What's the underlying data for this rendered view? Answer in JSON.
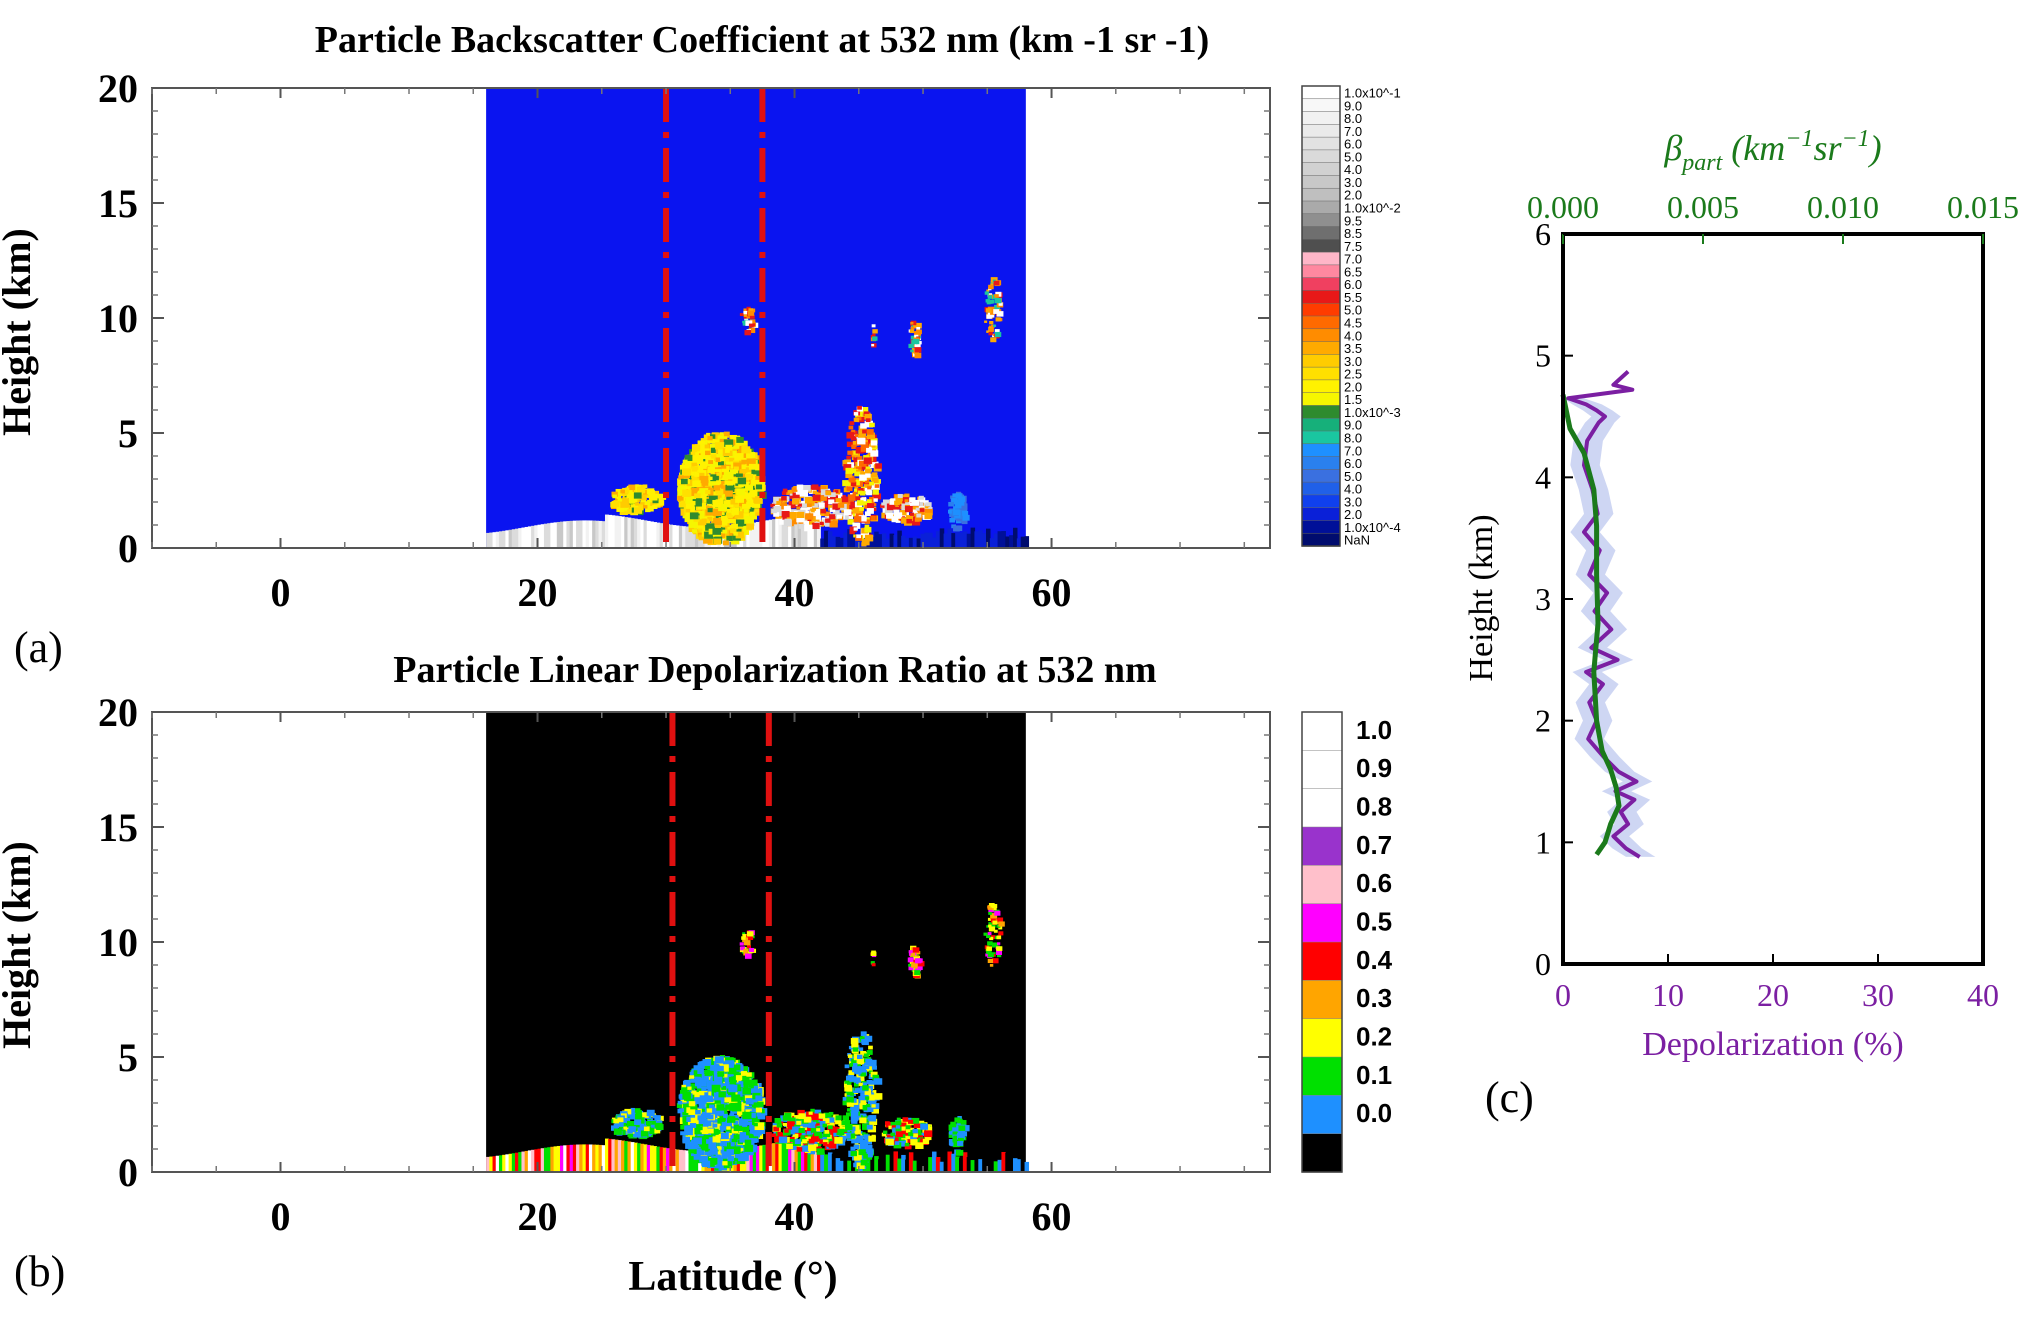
{
  "figure": {
    "panel_a": {
      "title": "Particle Backscatter Coefficient at 532 nm (km -1 sr -1)",
      "label": "(a)"
    },
    "panel_b": {
      "title": "Particle Linear Depolarization Ratio at 532 nm",
      "label": "(b)"
    },
    "panel_c": {
      "label": "(c)"
    },
    "shared_ylabel": "Height (km)",
    "shared_xlabel": "Latitude (°)"
  },
  "colors": {
    "clear_air_a": "#0a14f0",
    "clear_air_b": "#000000",
    "marker_lines": "#e01010",
    "depol_line": "#7b1fa2",
    "beta_line": "#1b7a1b",
    "band": "#b9c4ee"
  },
  "chart_data": [
    {
      "type": "heatmap",
      "title": "Particle Backscatter Coefficient at 532 nm (km -1 sr -1)",
      "ylabel": "Height (km)",
      "xlabel": "",
      "xlim": [
        -10,
        77
      ],
      "ylim": [
        0,
        20
      ],
      "xticks": [
        0,
        20,
        40,
        60
      ],
      "yticks": [
        0,
        5,
        10,
        15,
        20
      ],
      "data_extent_latitude": [
        16,
        58
      ],
      "marker_latitudes": [
        30,
        37.5
      ],
      "colorbar": {
        "labels": [
          "1.0x10^-1",
          "9.0",
          "8.0",
          "7.0",
          "6.0",
          "5.0",
          "4.0",
          "3.0",
          "2.0",
          "1.0x10^-2",
          "9.5",
          "8.5",
          "7.5",
          "7.0",
          "6.5",
          "6.0",
          "5.5",
          "5.0",
          "4.5",
          "4.0",
          "3.5",
          "3.0",
          "2.5",
          "2.0",
          "1.5",
          "1.0x10^-3",
          "9.0",
          "8.0",
          "7.0",
          "6.0",
          "5.0",
          "4.0",
          "3.0",
          "2.0",
          "1.0x10^-4",
          "NaN"
        ],
        "colors": [
          "#ffffff",
          "#f8f8f8",
          "#f1f1f1",
          "#eaeaea",
          "#e2e2e2",
          "#dadada",
          "#d1d1d1",
          "#c8c8c8",
          "#bfbfbf",
          "#aaaaaa",
          "#8f8f8f",
          "#6f6f6f",
          "#4f4f4f",
          "#ffb6c8",
          "#ff88a0",
          "#f04060",
          "#e81818",
          "#ff3c00",
          "#ff6a00",
          "#ff8c00",
          "#ffaa00",
          "#ffcc00",
          "#ffe000",
          "#fff200",
          "#f6f600",
          "#2e8b2e",
          "#16b07a",
          "#1ac6a0",
          "#1e90ff",
          "#2a80ee",
          "#3a70e0",
          "#2060e8",
          "#1040ee",
          "#0a20d8",
          "#001098",
          "#000c6e"
        ]
      },
      "features": [
        {
          "label": "",
          "kind": "surface aerosol layer",
          "lat_range": [
            16,
            42
          ],
          "height_km": [
            0,
            1.5
          ]
        },
        {
          "label": "",
          "kind": "dust plume",
          "lat_range": [
            31,
            37
          ],
          "height_km": [
            0.5,
            5.2
          ]
        },
        {
          "label": "",
          "kind": "elevated plume",
          "lat_range": [
            43,
            47
          ],
          "height_km": [
            0,
            6.3
          ]
        },
        {
          "label": "",
          "kind": "cirrus",
          "lat_range": [
            54,
            56
          ],
          "height_km": [
            9,
            12
          ]
        }
      ]
    },
    {
      "type": "heatmap",
      "title": "Particle Linear Depolarization Ratio at 532 nm",
      "ylabel": "Height (km)",
      "xlabel": "Latitude (°)",
      "xlim": [
        -10,
        77
      ],
      "ylim": [
        0,
        20
      ],
      "xticks": [
        0,
        20,
        40,
        60
      ],
      "yticks": [
        0,
        5,
        10,
        15,
        20
      ],
      "data_extent_latitude": [
        16,
        58
      ],
      "marker_latitudes": [
        30.5,
        38
      ],
      "colorbar": {
        "labels": [
          "1.0",
          "0.9",
          "0.8",
          "0.7",
          "0.6",
          "0.5",
          "0.4",
          "0.3",
          "0.2",
          "0.1",
          "0.0"
        ],
        "colors": [
          "#ffffff",
          "#ffffff",
          "#ffffff",
          "#9933cc",
          "#ffc0cb",
          "#ff00ff",
          "#ff0000",
          "#ffa500",
          "#ffff00",
          "#00e000",
          "#1e90ff",
          "#000000"
        ]
      }
    },
    {
      "type": "line",
      "top_axis_label": "β_part (km^-1 sr^-1)",
      "top_axis_ticks": [
        "0.000",
        "0.005",
        "0.010",
        "0.015"
      ],
      "top_xlim": [
        0,
        0.015
      ],
      "xlabel": "Depolarization (%)",
      "ylabel": "Height (km)",
      "xlim": [
        0,
        40
      ],
      "ylim": [
        0,
        6
      ],
      "xticks": [
        0,
        10,
        20,
        30,
        40
      ],
      "yticks": [
        0,
        1,
        2,
        3,
        4,
        5,
        6
      ],
      "series": [
        {
          "axis": "bottom",
          "color": "#7b1fa2",
          "points": [
            [
              6.2,
              4.87
            ],
            [
              4.8,
              4.76
            ],
            [
              6.6,
              4.72
            ],
            [
              0.5,
              4.65
            ],
            [
              2.2,
              4.6
            ],
            [
              3.2,
              4.55
            ],
            [
              4.0,
              4.5
            ],
            [
              3.4,
              4.45
            ],
            [
              2.3,
              4.3
            ],
            [
              2.0,
              4.1
            ],
            [
              2.8,
              3.9
            ],
            [
              3.3,
              3.7
            ],
            [
              2.0,
              3.55
            ],
            [
              3.5,
              3.4
            ],
            [
              2.5,
              3.2
            ],
            [
              4.2,
              3.05
            ],
            [
              3.0,
              2.9
            ],
            [
              4.6,
              2.75
            ],
            [
              2.7,
              2.6
            ],
            [
              5.2,
              2.5
            ],
            [
              2.2,
              2.4
            ],
            [
              3.8,
              2.3
            ],
            [
              2.5,
              2.15
            ],
            [
              3.2,
              2.0
            ],
            [
              2.4,
              1.85
            ],
            [
              3.9,
              1.7
            ],
            [
              5.3,
              1.58
            ],
            [
              7.0,
              1.5
            ],
            [
              5.0,
              1.42
            ],
            [
              6.8,
              1.35
            ],
            [
              5.5,
              1.25
            ],
            [
              6.2,
              1.15
            ],
            [
              4.8,
              1.05
            ],
            [
              6.0,
              0.95
            ],
            [
              7.3,
              0.88
            ]
          ]
        },
        {
          "axis": "top",
          "color": "#1b7a1b",
          "points": [
            [
              0.0,
              4.68
            ],
            [
              0.00025,
              4.4
            ],
            [
              0.00075,
              4.2
            ],
            [
              0.0011,
              3.9
            ],
            [
              0.0012,
              3.6
            ],
            [
              0.0012,
              3.2
            ],
            [
              0.00125,
              2.8
            ],
            [
              0.0011,
              2.4
            ],
            [
              0.0012,
              2.0
            ],
            [
              0.0014,
              1.75
            ],
            [
              0.0017,
              1.6
            ],
            [
              0.0019,
              1.45
            ],
            [
              0.002,
              1.3
            ],
            [
              0.0017,
              1.15
            ],
            [
              0.0015,
              1.0
            ],
            [
              0.0012,
              0.9
            ]
          ]
        }
      ]
    }
  ]
}
